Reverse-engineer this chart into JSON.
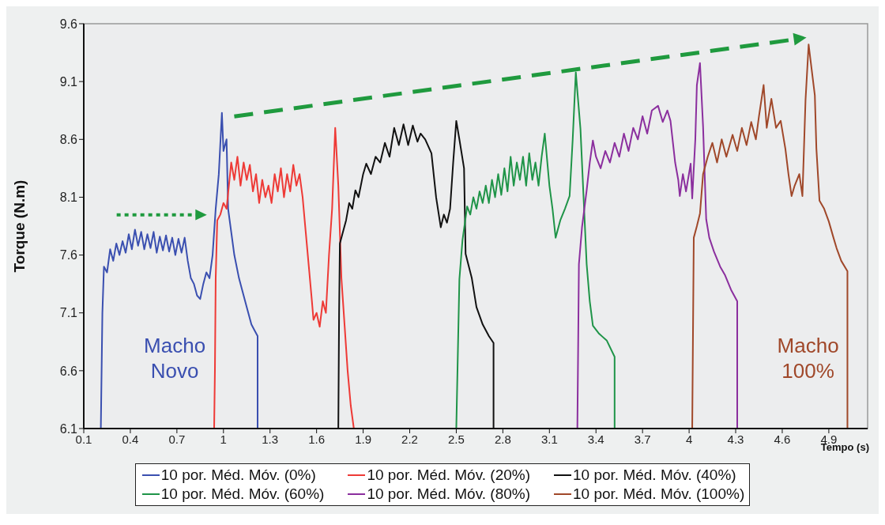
{
  "chart_data": {
    "type": "line",
    "xlabel": "Tempo (s)",
    "ylabel": "Torque (N.m)",
    "xlim": [
      0.1,
      5.15
    ],
    "xticks": [
      0.1,
      0.4,
      0.7,
      1,
      1.3,
      1.6,
      1.9,
      2.2,
      2.5,
      2.8,
      3.1,
      3.4,
      3.7,
      4,
      4.3,
      4.6,
      4.9
    ],
    "ylim": [
      6.1,
      9.6
    ],
    "yticks": [
      6.1,
      6.6,
      7.1,
      7.6,
      8.1,
      8.6,
      9.1,
      9.6
    ],
    "legend": "bottom",
    "marker": "none",
    "line_style": "solid",
    "annotations": [
      "Macho\nNovo",
      "Macho\n100%"
    ],
    "series": [
      {
        "name": "10 por. Méd. Móv. (0%)",
        "color": "#3a4fb0",
        "x": [
          0.21,
          0.22,
          0.23,
          0.25,
          0.27,
          0.29,
          0.31,
          0.33,
          0.35,
          0.37,
          0.39,
          0.41,
          0.43,
          0.45,
          0.47,
          0.49,
          0.51,
          0.53,
          0.55,
          0.57,
          0.59,
          0.61,
          0.63,
          0.65,
          0.67,
          0.69,
          0.71,
          0.73,
          0.75,
          0.77,
          0.79,
          0.81,
          0.83,
          0.85,
          0.87,
          0.89,
          0.91,
          0.93,
          0.95,
          0.97,
          0.99,
          1.0,
          1.02,
          1.03,
          1.05,
          1.07,
          1.1,
          1.12,
          1.15,
          1.18,
          1.2,
          1.22,
          1.22
        ],
        "values": [
          6.1,
          7.1,
          7.5,
          7.45,
          7.65,
          7.55,
          7.7,
          7.6,
          7.72,
          7.62,
          7.78,
          7.65,
          7.82,
          7.68,
          7.8,
          7.65,
          7.78,
          7.66,
          7.8,
          7.62,
          7.76,
          7.64,
          7.77,
          7.63,
          7.75,
          7.6,
          7.74,
          7.62,
          7.75,
          7.55,
          7.4,
          7.35,
          7.25,
          7.22,
          7.35,
          7.45,
          7.4,
          7.6,
          8.0,
          8.3,
          8.83,
          8.5,
          8.6,
          8.0,
          7.8,
          7.6,
          7.4,
          7.3,
          7.15,
          7.0,
          6.95,
          6.9,
          6.1
        ]
      },
      {
        "name": "10 por. Méd. Móv. (20%)",
        "color": "#ee3a36",
        "x": [
          0.94,
          0.945,
          0.95,
          0.96,
          0.98,
          1.0,
          1.02,
          1.05,
          1.07,
          1.09,
          1.11,
          1.13,
          1.15,
          1.17,
          1.19,
          1.21,
          1.23,
          1.25,
          1.27,
          1.29,
          1.31,
          1.33,
          1.35,
          1.37,
          1.39,
          1.41,
          1.43,
          1.45,
          1.47,
          1.49,
          1.51,
          1.53,
          1.55,
          1.57,
          1.58,
          1.6,
          1.62,
          1.64,
          1.66,
          1.68,
          1.7,
          1.72,
          1.74,
          1.76,
          1.78,
          1.8,
          1.82,
          1.84
        ],
        "values": [
          6.1,
          6.6,
          7.4,
          7.9,
          7.95,
          8.05,
          8.0,
          8.4,
          8.25,
          8.45,
          8.2,
          8.4,
          8.25,
          8.38,
          8.15,
          8.3,
          8.05,
          8.25,
          8.1,
          8.2,
          8.05,
          8.3,
          8.15,
          8.35,
          8.1,
          8.3,
          8.15,
          8.38,
          8.2,
          8.3,
          8.1,
          7.8,
          7.5,
          7.2,
          7.04,
          7.1,
          6.98,
          7.2,
          7.1,
          7.6,
          8.0,
          8.7,
          8.2,
          7.4,
          7.0,
          6.6,
          6.3,
          6.1
        ]
      },
      {
        "name": "10 por. Méd. Móv. (40%)",
        "color": "#111111",
        "x": [
          1.74,
          1.745,
          1.75,
          1.77,
          1.79,
          1.81,
          1.83,
          1.85,
          1.87,
          1.9,
          1.92,
          1.95,
          1.98,
          2.01,
          2.04,
          2.07,
          2.1,
          2.13,
          2.16,
          2.19,
          2.22,
          2.25,
          2.27,
          2.3,
          2.34,
          2.37,
          2.4,
          2.42,
          2.44,
          2.46,
          2.48,
          2.5,
          2.52,
          2.55,
          2.56,
          2.6,
          2.63,
          2.67,
          2.71,
          2.74,
          2.74
        ],
        "values": [
          6.1,
          7.1,
          7.7,
          7.8,
          7.9,
          8.05,
          8.0,
          8.16,
          8.1,
          8.3,
          8.39,
          8.3,
          8.45,
          8.4,
          8.57,
          8.45,
          8.7,
          8.55,
          8.73,
          8.55,
          8.72,
          8.58,
          8.65,
          8.6,
          8.48,
          8.1,
          7.84,
          7.95,
          7.88,
          8.0,
          8.4,
          8.76,
          8.6,
          8.35,
          7.61,
          7.4,
          7.15,
          7.0,
          6.9,
          6.84,
          6.1
        ]
      },
      {
        "name": "10 por. Méd. Móv. (60%)",
        "color": "#1f9448",
        "x": [
          2.5,
          2.52,
          2.54,
          2.57,
          2.59,
          2.61,
          2.63,
          2.65,
          2.67,
          2.69,
          2.71,
          2.73,
          2.75,
          2.77,
          2.79,
          2.81,
          2.83,
          2.85,
          2.87,
          2.89,
          2.91,
          2.93,
          2.95,
          2.97,
          2.99,
          3.01,
          3.03,
          3.05,
          3.07,
          3.1,
          3.12,
          3.14,
          3.17,
          3.2,
          3.23,
          3.25,
          3.27,
          3.3,
          3.32,
          3.34,
          3.36,
          3.38,
          3.42,
          3.47,
          3.52,
          3.52
        ],
        "values": [
          6.1,
          7.39,
          7.73,
          8.02,
          7.95,
          8.1,
          8.0,
          8.15,
          8.05,
          8.2,
          8.05,
          8.25,
          8.1,
          8.3,
          8.12,
          8.35,
          8.15,
          8.45,
          8.2,
          8.4,
          8.25,
          8.45,
          8.2,
          8.48,
          8.25,
          8.4,
          8.2,
          8.45,
          8.65,
          8.2,
          8.0,
          7.75,
          7.9,
          8.0,
          8.11,
          8.6,
          9.18,
          8.69,
          8.1,
          7.52,
          7.2,
          6.99,
          6.92,
          6.86,
          6.72,
          6.1
        ]
      },
      {
        "name": "10 por. Méd. Móv. (80%)",
        "color": "#8b2f9e",
        "x": [
          3.28,
          3.285,
          3.29,
          3.31,
          3.34,
          3.36,
          3.38,
          3.4,
          3.43,
          3.46,
          3.49,
          3.52,
          3.55,
          3.58,
          3.61,
          3.64,
          3.67,
          3.7,
          3.73,
          3.76,
          3.8,
          3.83,
          3.86,
          3.88,
          3.91,
          3.93,
          3.94,
          3.96,
          3.98,
          4.01,
          4.02,
          4.04,
          4.05,
          4.07,
          4.09,
          4.11,
          4.13,
          4.16,
          4.2,
          4.23,
          4.27,
          4.31,
          4.31
        ],
        "values": [
          6.1,
          6.79,
          7.52,
          7.84,
          8.16,
          8.4,
          8.59,
          8.45,
          8.35,
          8.5,
          8.4,
          8.57,
          8.45,
          8.65,
          8.5,
          8.7,
          8.6,
          8.8,
          8.65,
          8.85,
          8.89,
          8.75,
          8.85,
          8.76,
          8.4,
          8.25,
          8.11,
          8.3,
          8.15,
          8.39,
          8.09,
          8.6,
          9.07,
          9.26,
          8.71,
          7.91,
          7.75,
          7.63,
          7.5,
          7.43,
          7.3,
          7.2,
          6.1
        ]
      },
      {
        "name": "10 por. Méd. Móv. (100%)",
        "color": "#a0482a",
        "x": [
          4.02,
          4.025,
          4.03,
          4.05,
          4.07,
          4.09,
          4.12,
          4.15,
          4.18,
          4.21,
          4.24,
          4.28,
          4.31,
          4.34,
          4.37,
          4.4,
          4.43,
          4.45,
          4.48,
          4.5,
          4.53,
          4.56,
          4.59,
          4.62,
          4.64,
          4.66,
          4.68,
          4.71,
          4.73,
          4.75,
          4.77,
          4.79,
          4.81,
          4.82,
          4.84,
          4.87,
          4.9,
          4.93,
          4.95,
          4.98,
          5.02,
          5.02
        ],
        "values": [
          6.1,
          6.93,
          7.75,
          7.85,
          7.96,
          8.3,
          8.45,
          8.57,
          8.4,
          8.6,
          8.45,
          8.64,
          8.5,
          8.7,
          8.55,
          8.75,
          8.6,
          8.8,
          9.07,
          8.7,
          8.95,
          8.7,
          8.76,
          8.52,
          8.3,
          8.11,
          8.2,
          8.3,
          8.11,
          8.94,
          9.42,
          9.2,
          8.98,
          8.52,
          8.07,
          8.0,
          7.89,
          7.75,
          7.66,
          7.55,
          7.46,
          6.1
        ]
      }
    ]
  }
}
